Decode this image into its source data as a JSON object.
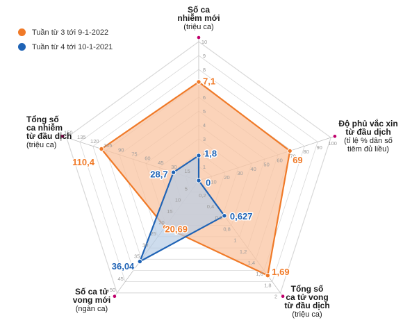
{
  "colors": {
    "series_1": "#f07a28",
    "series_1_fill": "#f9c4a1",
    "series_2": "#1f63b5",
    "series_2_fill": "#b8cde6",
    "grid": "#d8d8d8",
    "spoke_end": "#c0006b"
  },
  "chart_data": {
    "type": "radar",
    "axes": [
      {
        "title_bold": [
          "Số ca",
          "nhiễm mới"
        ],
        "title_sub": [
          "(triệu ca)"
        ],
        "max": 10,
        "ticks": [
          1,
          2,
          3,
          4,
          5,
          6,
          7,
          8,
          9,
          10
        ],
        "tick_labels": [
          "1",
          "2",
          "3",
          "4",
          "5",
          "6",
          "7",
          "8",
          "9",
          "10"
        ]
      },
      {
        "title_bold": [
          "Độ phủ vắc xin",
          "từ đầu dịch"
        ],
        "title_sub": [
          "(tỉ lệ % dân số",
          "tiêm đủ liều)"
        ],
        "max": 100,
        "ticks": [
          10,
          20,
          30,
          40,
          50,
          60,
          70,
          80,
          90,
          100
        ],
        "tick_labels": [
          "10",
          "20",
          "30",
          "40",
          "50",
          "60",
          "70",
          "80",
          "90",
          "100"
        ]
      },
      {
        "title_bold": [
          "Tổng số",
          "ca tử vong",
          "từ đầu dịch"
        ],
        "title_sub": [
          "(triệu ca)"
        ],
        "max": 2,
        "ticks": [
          0.2,
          0.4,
          0.6,
          0.8,
          1,
          1.2,
          1.4,
          1.6,
          1.8,
          2
        ],
        "tick_labels": [
          "0,2",
          "0,4",
          "0,6",
          "0,8",
          "1",
          "1,2",
          "1,4",
          "1,6",
          "1,8",
          "2"
        ]
      },
      {
        "title_bold": [
          "Số ca tử",
          "vong mới"
        ],
        "title_sub": [
          "(ngàn ca)"
        ],
        "max": 50,
        "ticks": [
          5,
          10,
          15,
          20,
          25,
          30,
          35,
          40,
          45,
          50
        ],
        "tick_labels": [
          "5",
          "10",
          "15",
          "20",
          "25",
          "30",
          "35",
          "40",
          "45",
          "50"
        ]
      },
      {
        "title_bold": [
          "Tổng số",
          "ca nhiễm",
          "từ đầu dịch"
        ],
        "title_sub": [
          "(triệu ca)"
        ],
        "max": 150,
        "ticks": [
          15,
          30,
          45,
          60,
          75,
          90,
          105,
          120,
          135,
          150
        ],
        "tick_labels": [
          "15",
          "30",
          "45",
          "60",
          "75",
          "90",
          "105",
          "120",
          "135",
          "150"
        ]
      }
    ],
    "series": [
      {
        "name": "Tuần từ 3 tới 9-1-2022",
        "values": [
          7.1,
          69,
          1.69,
          20.69,
          110.4
        ],
        "labels": [
          "7,1",
          "69",
          "1,69",
          "20,69",
          "110,4"
        ]
      },
      {
        "name": "Tuần từ 4 tới 10-1-2021",
        "values": [
          1.8,
          0,
          0.627,
          36.04,
          28.7
        ],
        "labels": [
          "1,8",
          "0",
          "0,627",
          "36,04",
          "28,7"
        ]
      }
    ],
    "legend_position": "top-left"
  }
}
